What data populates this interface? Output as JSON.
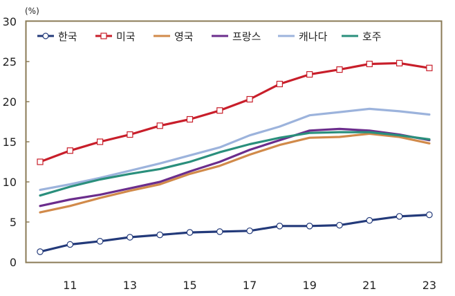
{
  "chart_data": {
    "type": "line",
    "unit_label": "(%)",
    "x": [
      10,
      11,
      12,
      13,
      14,
      15,
      16,
      17,
      18,
      19,
      20,
      21,
      22,
      23
    ],
    "x_tick_labels": [
      "11",
      "13",
      "15",
      "17",
      "19",
      "21",
      "23"
    ],
    "y_tick_labels": [
      "0",
      "5",
      "10",
      "15",
      "20",
      "25",
      "30"
    ],
    "ylim": [
      0,
      30
    ],
    "grid": false,
    "legend_position": "top",
    "series": [
      {
        "name": "한국",
        "color": "#233a7a",
        "marker": "circle",
        "values": [
          1.3,
          2.2,
          2.6,
          3.1,
          3.4,
          3.7,
          3.8,
          3.9,
          4.5,
          4.5,
          4.6,
          5.2,
          5.7,
          5.9
        ]
      },
      {
        "name": "미국",
        "color": "#c81e2a",
        "marker": "square",
        "values": [
          12.5,
          13.9,
          15.0,
          15.9,
          17.0,
          17.8,
          18.9,
          20.3,
          22.2,
          23.4,
          24.0,
          24.7,
          24.8,
          24.2
        ]
      },
      {
        "name": "영국",
        "color": "#d18a4a",
        "marker": "none",
        "values": [
          6.2,
          7.0,
          8.0,
          8.9,
          9.7,
          11.0,
          12.0,
          13.4,
          14.6,
          15.5,
          15.6,
          16.0,
          15.6,
          14.8
        ]
      },
      {
        "name": "프랑스",
        "color": "#6b2d8c",
        "marker": "none",
        "values": [
          7.0,
          7.8,
          8.4,
          9.2,
          10.0,
          11.3,
          12.5,
          14.0,
          15.2,
          16.4,
          16.6,
          16.4,
          15.9,
          15.2
        ]
      },
      {
        "name": "캐나다",
        "color": "#9cb3dc",
        "marker": "none",
        "values": [
          9.0,
          9.7,
          10.5,
          11.4,
          12.3,
          13.3,
          14.3,
          15.8,
          16.9,
          18.3,
          18.7,
          19.1,
          18.8,
          18.4
        ]
      },
      {
        "name": "호주",
        "color": "#2a8f7c",
        "marker": "none",
        "values": [
          8.3,
          9.4,
          10.3,
          11.0,
          11.6,
          12.5,
          13.7,
          14.7,
          15.5,
          16.1,
          16.2,
          16.2,
          15.8,
          15.3
        ]
      }
    ]
  }
}
